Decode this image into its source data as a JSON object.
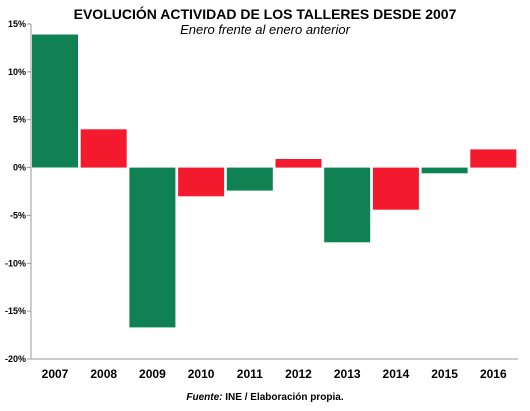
{
  "chart_data": {
    "type": "bar",
    "title": "EVOLUCIÓN ACTIVIDAD DE LOS TALLERES DESDE 2007",
    "subtitle": "Enero frente al enero anterior",
    "categories": [
      "2007",
      "2008",
      "2009",
      "2010",
      "2011",
      "2012",
      "2013",
      "2014",
      "2015",
      "2016"
    ],
    "values": [
      13.9,
      4.0,
      -16.7,
      -3.0,
      -2.4,
      0.9,
      -7.8,
      -4.4,
      -0.6,
      1.9
    ],
    "bar_colors": [
      "#108153",
      "#f31a2e",
      "#108153",
      "#f31a2e",
      "#108153",
      "#f31a2e",
      "#108153",
      "#f31a2e",
      "#108153",
      "#f31a2e"
    ],
    "ylim": [
      -20,
      15
    ],
    "yticks": [
      -20,
      -15,
      -10,
      -5,
      0,
      5,
      10,
      15
    ],
    "ytick_labels": [
      "-20%",
      "-15%",
      "-10%",
      "-5%",
      "0%",
      "5%",
      "10%",
      "15%"
    ],
    "xlabel": "",
    "ylabel": "",
    "grid": false
  },
  "source": {
    "prefix": "Fuente:",
    "text": " INE / Elaboración propia."
  }
}
